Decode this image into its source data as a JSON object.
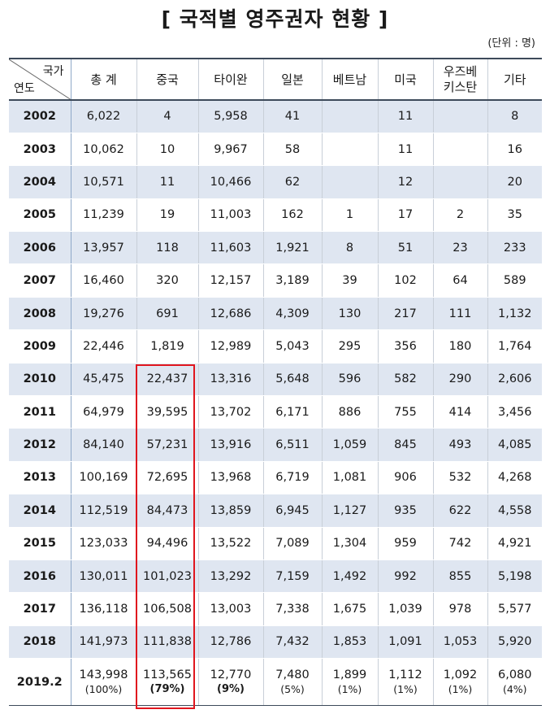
{
  "title": "[ 국적별 영주권자 현황 ]",
  "unit": "(단위 : 명)",
  "corner": {
    "top": "국가",
    "bottom": "연도"
  },
  "columns": [
    "총 계",
    "중국",
    "타이완",
    "일본",
    "베트남",
    "미국",
    "우즈베\n키스탄",
    "기타"
  ],
  "rows": [
    {
      "year": "2002",
      "cells": [
        "6,022",
        "4",
        "5,958",
        "41",
        "",
        "11",
        "",
        "8"
      ]
    },
    {
      "year": "2003",
      "cells": [
        "10,062",
        "10",
        "9,967",
        "58",
        "",
        "11",
        "",
        "16"
      ]
    },
    {
      "year": "2004",
      "cells": [
        "10,571",
        "11",
        "10,466",
        "62",
        "",
        "12",
        "",
        "20"
      ]
    },
    {
      "year": "2005",
      "cells": [
        "11,239",
        "19",
        "11,003",
        "162",
        "1",
        "17",
        "2",
        "35"
      ]
    },
    {
      "year": "2006",
      "cells": [
        "13,957",
        "118",
        "11,603",
        "1,921",
        "8",
        "51",
        "23",
        "233"
      ]
    },
    {
      "year": "2007",
      "cells": [
        "16,460",
        "320",
        "12,157",
        "3,189",
        "39",
        "102",
        "64",
        "589"
      ]
    },
    {
      "year": "2008",
      "cells": [
        "19,276",
        "691",
        "12,686",
        "4,309",
        "130",
        "217",
        "111",
        "1,132"
      ]
    },
    {
      "year": "2009",
      "cells": [
        "22,446",
        "1,819",
        "12,989",
        "5,043",
        "295",
        "356",
        "180",
        "1,764"
      ]
    },
    {
      "year": "2010",
      "cells": [
        "45,475",
        "22,437",
        "13,316",
        "5,648",
        "596",
        "582",
        "290",
        "2,606"
      ]
    },
    {
      "year": "2011",
      "cells": [
        "64,979",
        "39,595",
        "13,702",
        "6,171",
        "886",
        "755",
        "414",
        "3,456"
      ]
    },
    {
      "year": "2012",
      "cells": [
        "84,140",
        "57,231",
        "13,916",
        "6,511",
        "1,059",
        "845",
        "493",
        "4,085"
      ]
    },
    {
      "year": "2013",
      "cells": [
        "100,169",
        "72,695",
        "13,968",
        "6,719",
        "1,081",
        "906",
        "532",
        "4,268"
      ]
    },
    {
      "year": "2014",
      "cells": [
        "112,519",
        "84,473",
        "13,859",
        "6,945",
        "1,127",
        "935",
        "622",
        "4,558"
      ]
    },
    {
      "year": "2015",
      "cells": [
        "123,033",
        "94,496",
        "13,522",
        "7,089",
        "1,304",
        "959",
        "742",
        "4,921"
      ]
    },
    {
      "year": "2016",
      "cells": [
        "130,011",
        "101,023",
        "13,292",
        "7,159",
        "1,492",
        "992",
        "855",
        "5,198"
      ]
    },
    {
      "year": "2017",
      "cells": [
        "136,118",
        "106,508",
        "13,003",
        "7,338",
        "1,675",
        "1,039",
        "978",
        "5,577"
      ]
    },
    {
      "year": "2018",
      "cells": [
        "141,973",
        "111,838",
        "12,786",
        "7,432",
        "1,853",
        "1,091",
        "1,053",
        "5,920"
      ]
    }
  ],
  "last_row": {
    "year": "2019.2",
    "cells": [
      {
        "value": "143,998",
        "pct": "(100%)",
        "bold": false
      },
      {
        "value": "113,565",
        "pct": "(79%)",
        "bold": true
      },
      {
        "value": "12,770",
        "pct": "(9%)",
        "bold": true
      },
      {
        "value": "7,480",
        "pct": "(5%)",
        "bold": false
      },
      {
        "value": "1,899",
        "pct": "(1%)",
        "bold": false
      },
      {
        "value": "1,112",
        "pct": "(1%)",
        "bold": false
      },
      {
        "value": "1,092",
        "pct": "(1%)",
        "bold": false
      },
      {
        "value": "6,080",
        "pct": "(4%)",
        "bold": false
      }
    ]
  },
  "colors": {
    "band": "#dfe6f1",
    "rule": "#3d4a5a",
    "highlight": "#e0161e"
  }
}
